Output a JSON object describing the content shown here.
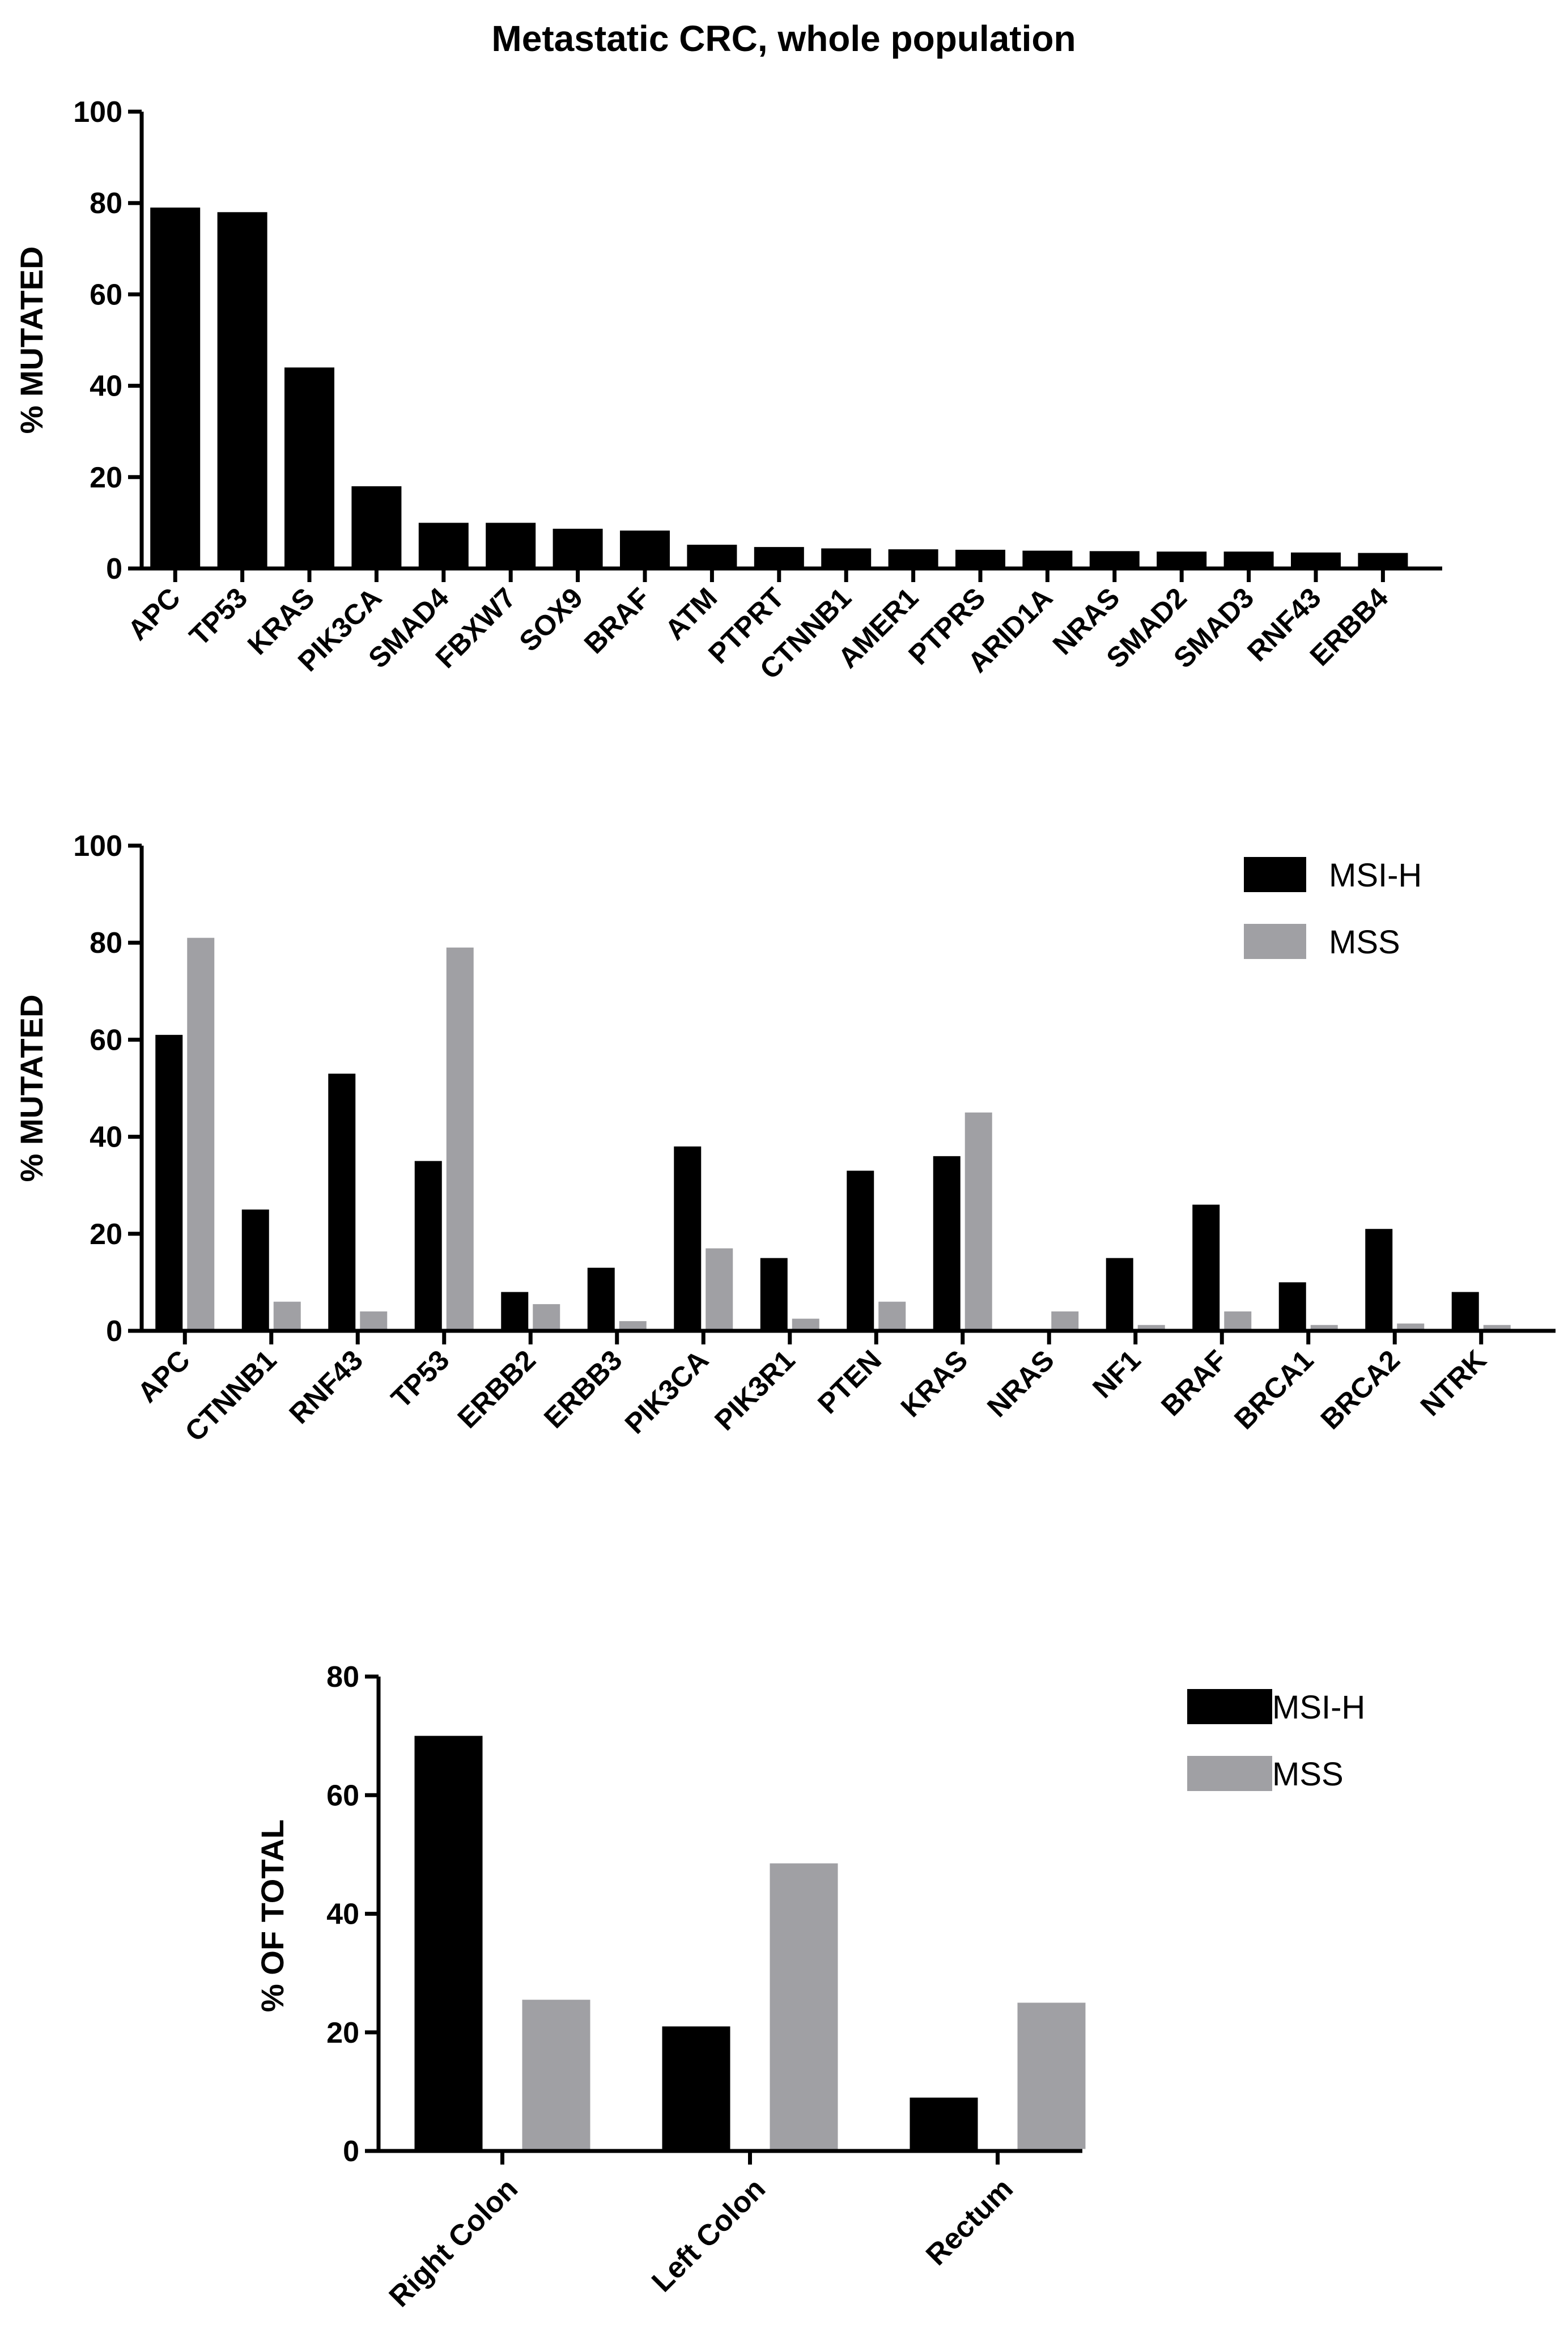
{
  "chart_data": [
    {
      "type": "bar",
      "title": "Metastatic CRC, whole population",
      "xlabel": "",
      "ylabel": "%  MUTATED",
      "ylim": [
        0,
        100
      ],
      "yticks": [
        0,
        20,
        40,
        60,
        80,
        100
      ],
      "categories": [
        "APC",
        "TP53",
        "KRAS",
        "PIK3CA",
        "SMAD4",
        "FBXW7",
        "SOX9",
        "BRAF",
        "ATM",
        "PTPRT",
        "CTNNB1",
        "AMER1",
        "PTPRS",
        "ARID1A",
        "NRAS",
        "SMAD2",
        "SMAD3",
        "RNF43",
        "ERBB4"
      ],
      "series": [
        {
          "name": "Whole population",
          "color": "#000000",
          "values": [
            79,
            78,
            44,
            18,
            10,
            10,
            8.7,
            8.3,
            5.2,
            4.7,
            4.4,
            4.2,
            4.1,
            3.9,
            3.8,
            3.7,
            3.7,
            3.5,
            3.4
          ]
        }
      ],
      "legend": "none"
    },
    {
      "type": "bar",
      "title": "",
      "xlabel": "",
      "ylabel": "%  MUTATED",
      "ylim": [
        0,
        100
      ],
      "yticks": [
        0,
        20,
        40,
        60,
        80,
        100
      ],
      "categories": [
        "APC",
        "CTNNB1",
        "RNF43",
        "TP53",
        "ERBB2",
        "ERBB3",
        "PIK3CA",
        "PIK3R1",
        "PTEN",
        "KRAS",
        "NRAS",
        "NF1",
        "BRAF",
        "BRCA1",
        "BRCA2",
        "NTRK"
      ],
      "series": [
        {
          "name": "MSI-H",
          "color": "#000000",
          "values": [
            61,
            25,
            53,
            35,
            8,
            13,
            38,
            15,
            33,
            36,
            0,
            15,
            26,
            10,
            21,
            8
          ]
        },
        {
          "name": "MSS",
          "color": "#a0a0a4",
          "values": [
            81,
            6,
            4,
            79,
            5.5,
            2,
            17,
            2.5,
            6,
            45,
            4,
            1.2,
            4,
            1.2,
            1.5,
            1.2
          ]
        }
      ],
      "legend": "top-right"
    },
    {
      "type": "bar",
      "title": "",
      "xlabel": "",
      "ylabel": "% OF TOTAL",
      "ylim": [
        0,
        80
      ],
      "yticks": [
        0,
        20,
        40,
        60,
        80
      ],
      "categories": [
        "Right Colon",
        "Left Colon",
        "Rectum"
      ],
      "series": [
        {
          "name": "MSI-H",
          "color": "#000000",
          "values": [
            70,
            21,
            9
          ]
        },
        {
          "name": "MSS",
          "color": "#a0a0a4",
          "values": [
            25.5,
            48.5,
            25
          ]
        }
      ],
      "legend": "top-right"
    }
  ]
}
